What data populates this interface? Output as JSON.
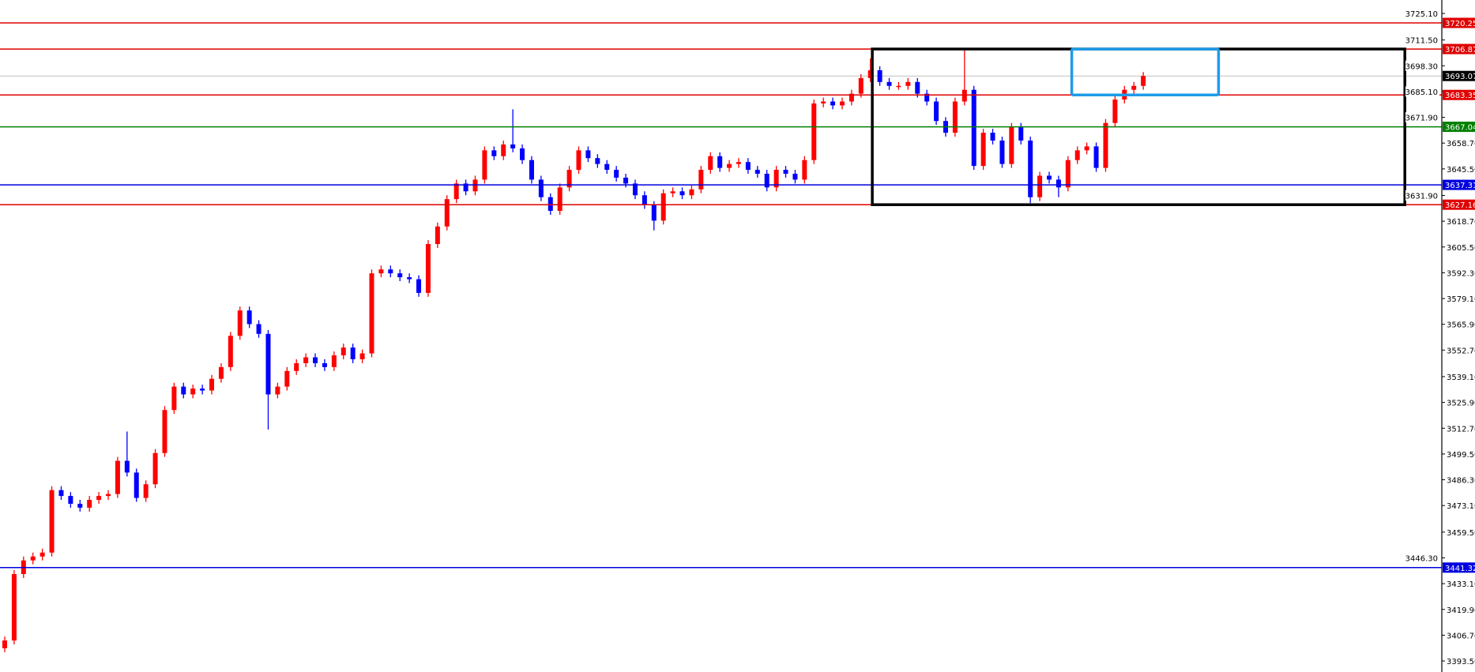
{
  "chart_data": {
    "type": "candlestick",
    "title": "",
    "xlabel": "",
    "ylabel": "",
    "ylim": [
      3393.5,
      3725.1
    ],
    "grid": false,
    "colors": {
      "bull": "#ff0000",
      "bear": "#0000ff",
      "background": "#ffffff",
      "axis": "#000000"
    },
    "y_ticks": [
      "3725.10",
      "3711.50",
      "3698.30",
      "3685.10",
      "3671.90",
      "3658.70",
      "3645.50",
      "3631.90",
      "3618.70",
      "3605.50",
      "3592.30",
      "3579.10",
      "3565.90",
      "3552.70",
      "3539.10",
      "3525.90",
      "3512.70",
      "3499.50",
      "3486.30",
      "3473.10",
      "3459.50",
      "3446.30",
      "3433.10",
      "3419.90",
      "3406.70",
      "3393.50"
    ],
    "closes": [
      3404,
      3438,
      3445,
      3447,
      3449,
      3481,
      3478,
      3474,
      3472,
      3476,
      3478,
      3479,
      3496,
      3490,
      3477,
      3484,
      3500,
      3522,
      3534,
      3530,
      3533,
      3532,
      3538,
      3544,
      3560,
      3573,
      3566,
      3561,
      3530,
      3534,
      3542,
      3546,
      3549,
      3546,
      3544,
      3550,
      3554,
      3548,
      3551,
      3592,
      3594,
      3592,
      3590,
      3589,
      3582,
      3607,
      3616,
      3630,
      3638,
      3634,
      3640,
      3655,
      3652,
      3658,
      3656,
      3650,
      3640,
      3631,
      3624,
      3636,
      3645,
      3655,
      3651,
      3648,
      3645,
      3641,
      3638,
      3632,
      3627,
      3619,
      3633,
      3634,
      3632,
      3635,
      3645,
      3652,
      3646,
      3648,
      3649,
      3645,
      3643,
      3636,
      3645,
      3643,
      3640,
      3650,
      3679,
      3680,
      3678,
      3680,
      3684,
      3692,
      3696,
      3690,
      3688,
      3688,
      3690,
      3684,
      3680,
      3670,
      3664,
      3680,
      3686,
      3647,
      3664,
      3660,
      3648,
      3667,
      3660,
      3631,
      3642,
      3640,
      3636,
      3650,
      3655,
      3657,
      3646,
      3669,
      3681,
      3686,
      3688,
      3693.07
    ],
    "first_open": 3400,
    "wick_extremes": [
      {
        "i": 13,
        "high": 3511
      },
      {
        "i": 28,
        "low": 3512
      },
      {
        "i": 54,
        "high": 3676
      },
      {
        "i": 69,
        "low": 3614
      },
      {
        "i": 92,
        "high": 3702
      },
      {
        "i": 102,
        "high": 3707
      },
      {
        "i": 109,
        "low": 3628
      },
      {
        "i": 112,
        "low": 3631
      }
    ],
    "horizontal_levels": [
      {
        "price": "3720.25",
        "color": "#e00000"
      },
      {
        "price": "3706.87",
        "color": "#e00000"
      },
      {
        "price": "3683.35",
        "color": "#e00000"
      },
      {
        "price": "3667.04",
        "color": "#008000"
      },
      {
        "price": "3637.31",
        "color": "#0000e0"
      },
      {
        "price": "3627.16",
        "color": "#e00000"
      },
      {
        "price": "3441.32",
        "color": "#0000e0"
      }
    ],
    "current_price": {
      "price": "3693.07",
      "color": "#000000",
      "line_color": "#c0c0c0"
    },
    "rectangles": [
      {
        "from_bar": 92.2,
        "to_bar": 148.8,
        "top": 3706.87,
        "bottom": 3627.16,
        "color": "#000000"
      },
      {
        "from_bar": 113.4,
        "to_bar": 129.0,
        "top": 3706.87,
        "bottom": 3683.35,
        "color": "#1e9be8"
      }
    ]
  }
}
